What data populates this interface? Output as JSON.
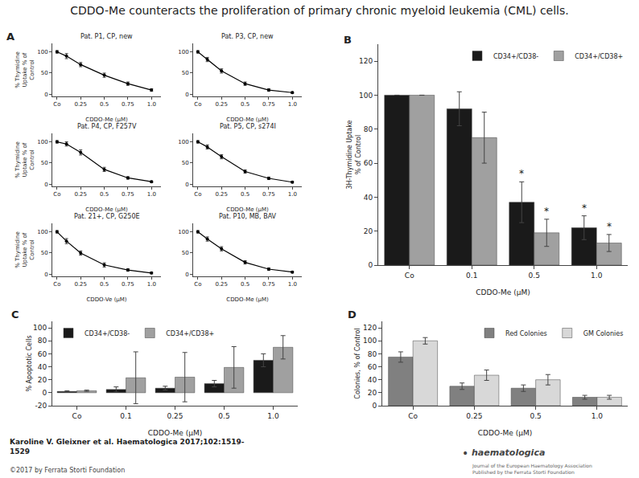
{
  "title": "CDDO-Me counteracts the proliferation of primary chronic myeloid leukemia (CML) cells.",
  "chart_data": [
    {
      "type": "line",
      "title": "Pat. P1, CP, new",
      "xlabel": "CDDO-Me (μM)",
      "ylabel": "% Thymidine\nUptake % of\nControl",
      "x": [
        0,
        0.1,
        0.25,
        0.5,
        0.75,
        1.0
      ],
      "series": [
        {
          "color": "#000000",
          "marker": "circle",
          "values": [
            100,
            90,
            70,
            45,
            25,
            10
          ],
          "errors": [
            3,
            6,
            5,
            5,
            4,
            3
          ]
        }
      ],
      "xlim": [
        -0.05,
        1.1
      ],
      "xticks": [
        {
          "value": 0,
          "label": "Co"
        },
        0.25,
        0.5,
        0.75,
        {
          "value": 1.0,
          "label": "1.0"
        }
      ],
      "ylim": [
        -5,
        120
      ],
      "yticks": [
        0,
        50,
        100
      ],
      "grid": false,
      "annotations": [
        {
          "text": "A"
        }
      ]
    },
    {
      "type": "line",
      "title": "Pat. P3, CP, new",
      "xlabel": "CDDO-Me (μM)",
      "x": [
        0,
        0.1,
        0.25,
        0.5,
        0.75,
        1.0
      ],
      "series": [
        {
          "color": "#000000",
          "marker": "circle",
          "values": [
            100,
            82,
            55,
            25,
            10,
            4
          ],
          "errors": [
            3,
            5,
            5,
            4,
            3,
            2
          ]
        }
      ],
      "xlim": [
        -0.05,
        1.1
      ],
      "xticks": [
        {
          "value": 0,
          "label": "Co"
        },
        0.25,
        0.5,
        0.75,
        {
          "value": 1.0,
          "label": "1.0"
        }
      ],
      "ylim": [
        -5,
        120
      ],
      "yticks": [
        0,
        50,
        100
      ],
      "grid": false
    },
    {
      "type": "line",
      "title": "Pat. P4, CP, F257V",
      "xlabel": "CDDO-Me (μM)",
      "ylabel": "% Thymidine\nUptake % of\nControl",
      "x": [
        0,
        0.1,
        0.25,
        0.5,
        0.75,
        1.0
      ],
      "series": [
        {
          "color": "#000000",
          "marker": "circle",
          "values": [
            100,
            95,
            75,
            35,
            15,
            6
          ],
          "errors": [
            3,
            5,
            6,
            5,
            3,
            2
          ]
        }
      ],
      "xlim": [
        -0.05,
        1.1
      ],
      "xticks": [
        {
          "value": 0,
          "label": "Co"
        },
        0.25,
        0.5,
        0.75,
        {
          "value": 1.0,
          "label": "1.0"
        }
      ],
      "ylim": [
        -5,
        120
      ],
      "yticks": [
        0,
        50,
        100
      ],
      "grid": false
    },
    {
      "type": "line",
      "title": "Pat. P5, CP, s274I",
      "xlabel": "CDDO-Me (μM)",
      "x": [
        0,
        0.1,
        0.25,
        0.5,
        0.75,
        1.0
      ],
      "series": [
        {
          "color": "#000000",
          "marker": "circle",
          "values": [
            100,
            88,
            65,
            30,
            14,
            5
          ],
          "errors": [
            3,
            5,
            5,
            4,
            3,
            2
          ]
        }
      ],
      "xlim": [
        -0.05,
        1.1
      ],
      "xticks": [
        {
          "value": 0,
          "label": "Co"
        },
        0.25,
        0.5,
        0.75,
        {
          "value": 1.0,
          "label": "1.0"
        }
      ],
      "ylim": [
        -5,
        120
      ],
      "yticks": [
        0,
        50,
        100
      ],
      "grid": false
    },
    {
      "type": "line",
      "title": "Pat. 21+, CP, G250E",
      "xlabel": "CDDO-Ve (μM)",
      "ylabel": "% Thymidine\nUptake % of\nControl",
      "x": [
        0,
        0.1,
        0.25,
        0.5,
        0.75,
        1.0
      ],
      "series": [
        {
          "color": "#000000",
          "marker": "circle",
          "values": [
            100,
            78,
            50,
            22,
            10,
            3
          ],
          "errors": [
            3,
            6,
            5,
            5,
            3,
            2
          ]
        }
      ],
      "xlim": [
        -0.05,
        1.1
      ],
      "xticks": [
        {
          "value": 0,
          "label": "Co"
        },
        0.25,
        0.5,
        0.75,
        {
          "value": 1.0,
          "label": "1.0"
        }
      ],
      "ylim": [
        -5,
        120
      ],
      "yticks": [
        0,
        50,
        100
      ],
      "grid": false
    },
    {
      "type": "line",
      "title": "Pat. P10, MB, BAV",
      "xlabel": "CDDO-Me (μM)",
      "x": [
        0,
        0.1,
        0.25,
        0.5,
        0.75,
        1.0
      ],
      "series": [
        {
          "color": "#000000",
          "marker": "circle",
          "values": [
            100,
            83,
            60,
            28,
            12,
            5
          ],
          "errors": [
            3,
            5,
            5,
            4,
            3,
            2
          ]
        }
      ],
      "xlim": [
        -0.05,
        1.1
      ],
      "xticks": [
        {
          "value": 0,
          "label": "Co"
        },
        0.25,
        0.5,
        0.75,
        {
          "value": 1.0,
          "label": "1.0"
        }
      ],
      "ylim": [
        -5,
        120
      ],
      "yticks": [
        0,
        50,
        100
      ],
      "grid": false
    },
    {
      "type": "bar",
      "xlabel": "CDDO-Me (μM)",
      "ylabel": "3H-Thymidine Uptake\n% of Control",
      "categories": [
        "Co",
        "0.1",
        "0.5",
        "1.0"
      ],
      "series": [
        {
          "name": "CD34+/CD38-",
          "color": "#1a1a1a",
          "values": [
            100,
            92,
            37,
            22
          ],
          "errors": [
            0,
            10,
            12,
            7
          ]
        },
        {
          "name": "CD34+/CD38+",
          "color": "#a0a0a0",
          "values": [
            100,
            75,
            19,
            13
          ],
          "errors": [
            0,
            15,
            8,
            5
          ]
        }
      ],
      "ylim": [
        0,
        130
      ],
      "yticks": [
        0,
        20,
        40,
        60,
        80,
        100,
        120
      ],
      "legend": "upper right",
      "grid": false,
      "annotations": [
        {
          "text": "B"
        },
        {
          "text": "*",
          "category": "0.5",
          "series": "CD34+/CD38-"
        },
        {
          "text": "*",
          "category": "1.0",
          "series": "CD34+/CD38-"
        },
        {
          "text": "*",
          "category": "0.5",
          "series": "CD34+/CD38+"
        },
        {
          "text": "*",
          "category": "1.0",
          "series": "CD34+/CD38+"
        }
      ]
    },
    {
      "type": "bar",
      "xlabel": "CDDO-Me (μM)",
      "ylabel": "% Apoptotic Cells",
      "categories": [
        "Co",
        "0.1",
        "0.25",
        "0.5",
        "1.0"
      ],
      "series": [
        {
          "name": "CD34+/CD38-",
          "color": "#1a1a1a",
          "values": [
            2,
            5,
            7,
            14,
            50
          ],
          "errors": [
            1,
            4,
            3,
            5,
            10
          ]
        },
        {
          "name": "CD34+/CD38+",
          "color": "#a0a0a0",
          "values": [
            3,
            23,
            24,
            39,
            70
          ],
          "errors": [
            1,
            40,
            38,
            32,
            18
          ]
        }
      ],
      "ylim": [
        -20,
        110
      ],
      "yticks": [
        -20,
        0,
        20,
        40,
        60,
        80,
        100
      ],
      "legend": "upper left",
      "grid": false,
      "annotations": [
        {
          "text": "C"
        }
      ]
    },
    {
      "type": "bar",
      "xlabel": "CDDO-Me (μM)",
      "ylabel": "Colonies, % of Control",
      "categories": [
        "Co",
        "0.25",
        "0.5",
        "1.0"
      ],
      "series": [
        {
          "name": "Red Colonies",
          "color": "#808080",
          "values": [
            75,
            30,
            27,
            13
          ],
          "errors": [
            8,
            5,
            5,
            3
          ]
        },
        {
          "name": "GM Colonies",
          "color": "#d8d8d8",
          "values": [
            100,
            47,
            40,
            13
          ],
          "errors": [
            5,
            8,
            8,
            3
          ]
        }
      ],
      "ylim": [
        0,
        130
      ],
      "yticks": [
        0,
        20,
        40,
        60,
        80,
        100,
        120
      ],
      "legend": "upper right",
      "grid": false,
      "annotations": [
        {
          "text": "D"
        }
      ]
    }
  ],
  "annotations": [
    "Karoline V. Gleixner et al. Haematologica 2017;102:1519-\n1529",
    "©2017 by Ferrata Storti Foundation",
    "•",
    "haematologica",
    "Journal of the European Haematology Association\nPublished by the Ferrata Storti Foundation"
  ]
}
